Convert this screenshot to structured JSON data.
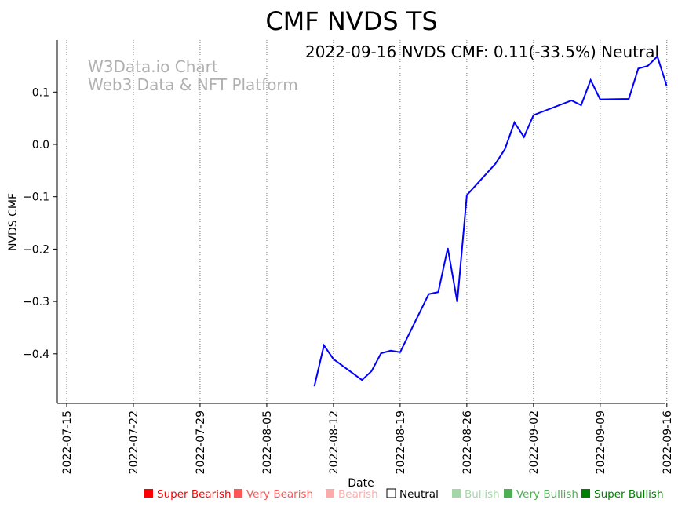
{
  "chart_data": {
    "type": "line",
    "title": "CMF NVDS TS",
    "subtitle": "2022-09-16 NVDS CMF: 0.11(-33.5%) Neutral",
    "watermark": [
      "W3Data.io Chart",
      "Web3 Data & NFT Platform"
    ],
    "xlabel": "Date",
    "ylabel": "NVDS CMF",
    "xlim": [
      "2022-07-14",
      "2022-09-16"
    ],
    "ylim": [
      -0.495,
      0.2
    ],
    "x_ticks": [
      "2022-07-15",
      "2022-07-22",
      "2022-07-29",
      "2022-08-05",
      "2022-08-12",
      "2022-08-19",
      "2022-08-26",
      "2022-09-02",
      "2022-09-09",
      "2022-09-16"
    ],
    "y_ticks": [
      0.1,
      0.0,
      -0.1,
      -0.2,
      -0.3,
      -0.4
    ],
    "y_tick_labels": [
      "0.1",
      "0.0",
      "−0.1",
      "−0.2",
      "−0.3",
      "−0.4"
    ],
    "grid": "vertical dotted",
    "line_color": "#0000ff",
    "series": [
      {
        "name": "NVDS CMF",
        "x": [
          "2022-08-10",
          "2022-08-11",
          "2022-08-12",
          "2022-08-15",
          "2022-08-16",
          "2022-08-17",
          "2022-08-18",
          "2022-08-19",
          "2022-08-22",
          "2022-08-23",
          "2022-08-24",
          "2022-08-25",
          "2022-08-26",
          "2022-08-29",
          "2022-08-30",
          "2022-08-31",
          "2022-09-01",
          "2022-09-02",
          "2022-09-06",
          "2022-09-07",
          "2022-09-08",
          "2022-09-09",
          "2022-09-12",
          "2022-09-13",
          "2022-09-14",
          "2022-09-15",
          "2022-09-16"
        ],
        "values": [
          -0.462,
          -0.384,
          -0.41,
          -0.45,
          -0.433,
          -0.399,
          -0.394,
          -0.397,
          -0.286,
          -0.282,
          -0.198,
          -0.301,
          -0.097,
          -0.037,
          -0.009,
          0.042,
          0.014,
          0.056,
          0.084,
          0.075,
          0.123,
          0.086,
          0.087,
          0.145,
          0.15,
          0.168,
          0.111
        ]
      }
    ],
    "legend": [
      {
        "label": "Super Bearish",
        "color": "#ff0000"
      },
      {
        "label": "Very Bearish",
        "color": "#ff5555"
      },
      {
        "label": "Bearish",
        "color": "#ffaaaa"
      },
      {
        "label": "Neutral",
        "color": "#000000",
        "hollow": true
      },
      {
        "label": "Bullish",
        "color": "#a5d6a7"
      },
      {
        "label": "Very Bullish",
        "color": "#4caf50"
      },
      {
        "label": "Super Bullish",
        "color": "#008000"
      }
    ],
    "legend_placement": "bottom"
  }
}
